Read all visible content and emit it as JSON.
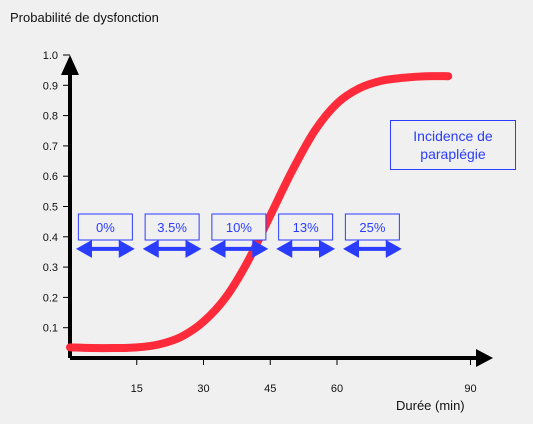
{
  "chart_data": {
    "type": "line",
    "ylabel": "Probabilité de dysfonction",
    "xlabel": "Durée (min)",
    "ylim": [
      0,
      1.0
    ],
    "xlim": [
      0,
      90
    ],
    "y_ticks": [
      "0.1",
      "0.2",
      "0.3",
      "0.4",
      "0.5",
      "0.6",
      "0.7",
      "0.8",
      "0.9",
      "1.0"
    ],
    "x_ticks": [
      15,
      30,
      45,
      60,
      90
    ],
    "series": [
      {
        "x": [
          0,
          5,
          10,
          15,
          20,
          25,
          30,
          35,
          40,
          45,
          50,
          55,
          60,
          65,
          70,
          75,
          80,
          85
        ],
        "y": [
          0.035,
          0.033,
          0.033,
          0.035,
          0.045,
          0.07,
          0.12,
          0.2,
          0.32,
          0.47,
          0.62,
          0.75,
          0.84,
          0.89,
          0.915,
          0.925,
          0.93,
          0.93
        ],
        "color": "#ff2b3a"
      }
    ],
    "legend": {
      "text": "Incidence de\nparaplégie"
    },
    "intervals": [
      {
        "label": "0%",
        "x": [
          0,
          15
        ]
      },
      {
        "label": "3.5%",
        "x": [
          15,
          30
        ]
      },
      {
        "label": "10%",
        "x": [
          30,
          45
        ]
      },
      {
        "label": "13%",
        "x": [
          45,
          60
        ]
      },
      {
        "label": "25%",
        "x": [
          60,
          75
        ]
      }
    ],
    "interval_y": 0.36,
    "colors": {
      "curve": "#ff2b3a",
      "annotation": "#2a3cff",
      "axis": "#000000"
    }
  }
}
